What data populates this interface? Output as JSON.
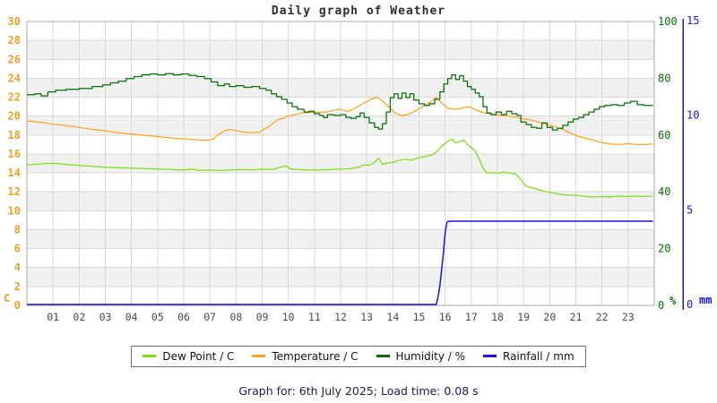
{
  "title": "Daily graph of Weather",
  "caption": "Graph for: 6th July 2025; Load time: 0.08 s",
  "legend": {
    "items": [
      {
        "label": "Dew Point / C",
        "color": "#7de013"
      },
      {
        "label": "Temperature / C",
        "color": "#ffa41e"
      },
      {
        "label": "Humidity / %",
        "color": "#056e05"
      },
      {
        "label": "Rainfall / mm",
        "color": "#1414e8"
      }
    ]
  },
  "colors": {
    "band_gray": "#f0f0f0",
    "band_white": "#ffffff",
    "grid": "#d9d9d9",
    "border": "#a8a8a8",
    "x_label": "#4a4a4a",
    "title": "#2e2e2e",
    "caption": "#1b1b4f"
  },
  "chart_data": {
    "type": "line",
    "title": "Daily graph of Weather",
    "x_axis": {
      "range": [
        0,
        24
      ],
      "tick_labels": [
        "01",
        "02",
        "03",
        "04",
        "05",
        "06",
        "07",
        "08",
        "09",
        "10",
        "11",
        "12",
        "13",
        "14",
        "15",
        "16",
        "17",
        "18",
        "19",
        "20",
        "21",
        "22",
        "23"
      ]
    },
    "y_axes": {
      "temperature": {
        "side": "left",
        "unit": "C",
        "range": [
          0,
          30
        ],
        "ticks": [
          0,
          2,
          4,
          6,
          8,
          10,
          12,
          14,
          16,
          18,
          20,
          22,
          24,
          26,
          28,
          30
        ],
        "color": "#f0a028"
      },
      "humidity": {
        "side": "right",
        "unit": "%",
        "range": [
          0,
          100
        ],
        "ticks": [
          0,
          20,
          40,
          60,
          80,
          100
        ],
        "color": "#056e05"
      },
      "rainfall": {
        "side": "right-outer",
        "unit": "mm",
        "range": [
          0,
          15
        ],
        "ticks": [
          0,
          5,
          10,
          15
        ],
        "color": "#1414e8"
      }
    },
    "grid": true,
    "legend_position": "bottom",
    "series": [
      {
        "name": "Dew Point / C",
        "axis": "temperature",
        "color": "#7de013",
        "interpolation": "linear",
        "points": [
          [
            0,
            14.85
          ],
          [
            0.3,
            14.9
          ],
          [
            0.7,
            15.0
          ],
          [
            1.1,
            15.0
          ],
          [
            1.5,
            14.9
          ],
          [
            2,
            14.8
          ],
          [
            2.5,
            14.7
          ],
          [
            3,
            14.6
          ],
          [
            3.5,
            14.55
          ],
          [
            4,
            14.5
          ],
          [
            4.5,
            14.45
          ],
          [
            5,
            14.4
          ],
          [
            5.5,
            14.35
          ],
          [
            6,
            14.3
          ],
          [
            6.3,
            14.4
          ],
          [
            6.6,
            14.25
          ],
          [
            7,
            14.3
          ],
          [
            7.4,
            14.25
          ],
          [
            7.8,
            14.3
          ],
          [
            8.2,
            14.35
          ],
          [
            8.6,
            14.3
          ],
          [
            9,
            14.4
          ],
          [
            9.4,
            14.35
          ],
          [
            9.9,
            14.75
          ],
          [
            10.1,
            14.4
          ],
          [
            10.4,
            14.35
          ],
          [
            10.8,
            14.3
          ],
          [
            11.2,
            14.3
          ],
          [
            11.6,
            14.35
          ],
          [
            12,
            14.4
          ],
          [
            12.4,
            14.45
          ],
          [
            12.7,
            14.6
          ],
          [
            12.9,
            14.85
          ],
          [
            13.1,
            14.8
          ],
          [
            13.3,
            15.1
          ],
          [
            13.45,
            15.55
          ],
          [
            13.6,
            14.9
          ],
          [
            13.8,
            15.05
          ],
          [
            14,
            15.1
          ],
          [
            14.2,
            15.3
          ],
          [
            14.45,
            15.45
          ],
          [
            14.7,
            15.35
          ],
          [
            15,
            15.6
          ],
          [
            15.25,
            15.75
          ],
          [
            15.5,
            15.9
          ],
          [
            15.7,
            16.3
          ],
          [
            15.9,
            16.9
          ],
          [
            16.1,
            17.35
          ],
          [
            16.25,
            17.6
          ],
          [
            16.4,
            17.15
          ],
          [
            16.55,
            17.3
          ],
          [
            16.7,
            17.45
          ],
          [
            16.85,
            17.0
          ],
          [
            17,
            16.7
          ],
          [
            17.15,
            16.3
          ],
          [
            17.3,
            15.5
          ],
          [
            17.45,
            14.5
          ],
          [
            17.6,
            14.0
          ],
          [
            17.8,
            14.05
          ],
          [
            18,
            13.95
          ],
          [
            18.2,
            14.1
          ],
          [
            18.45,
            14.0
          ],
          [
            18.7,
            13.9
          ],
          [
            18.9,
            13.3
          ],
          [
            19.1,
            12.6
          ],
          [
            19.3,
            12.45
          ],
          [
            19.6,
            12.2
          ],
          [
            19.9,
            12.0
          ],
          [
            20.2,
            11.85
          ],
          [
            20.5,
            11.7
          ],
          [
            20.8,
            11.65
          ],
          [
            21.1,
            11.6
          ],
          [
            21.4,
            11.5
          ],
          [
            21.7,
            11.45
          ],
          [
            22,
            11.5
          ],
          [
            22.3,
            11.45
          ],
          [
            22.6,
            11.55
          ],
          [
            22.9,
            11.5
          ],
          [
            23.2,
            11.55
          ],
          [
            23.5,
            11.5
          ],
          [
            23.95,
            11.55
          ]
        ]
      },
      {
        "name": "Temperature / C",
        "axis": "temperature",
        "color": "#ffa41e",
        "interpolation": "linear",
        "points": [
          [
            0,
            19.5
          ],
          [
            0.5,
            19.35
          ],
          [
            1,
            19.15
          ],
          [
            1.5,
            19.0
          ],
          [
            2,
            18.8
          ],
          [
            2.5,
            18.6
          ],
          [
            3,
            18.45
          ],
          [
            3.5,
            18.25
          ],
          [
            4,
            18.1
          ],
          [
            4.5,
            17.95
          ],
          [
            5,
            17.85
          ],
          [
            5.5,
            17.7
          ],
          [
            6,
            17.6
          ],
          [
            6.5,
            17.5
          ],
          [
            6.9,
            17.45
          ],
          [
            7.1,
            17.55
          ],
          [
            7.35,
            18.1
          ],
          [
            7.6,
            18.5
          ],
          [
            7.8,
            18.6
          ],
          [
            8.1,
            18.4
          ],
          [
            8.5,
            18.25
          ],
          [
            8.9,
            18.3
          ],
          [
            9.25,
            18.9
          ],
          [
            9.6,
            19.6
          ],
          [
            10,
            20.0
          ],
          [
            10.3,
            20.2
          ],
          [
            10.6,
            20.35
          ],
          [
            11,
            20.4
          ],
          [
            11.4,
            20.4
          ],
          [
            11.8,
            20.65
          ],
          [
            11.95,
            20.75
          ],
          [
            12.1,
            20.6
          ],
          [
            12.3,
            20.5
          ],
          [
            12.6,
            20.9
          ],
          [
            12.9,
            21.4
          ],
          [
            13.2,
            21.85
          ],
          [
            13.4,
            22.0
          ],
          [
            13.6,
            21.6
          ],
          [
            13.8,
            21.1
          ],
          [
            14.1,
            20.3
          ],
          [
            14.35,
            20.05
          ],
          [
            14.6,
            20.2
          ],
          [
            14.9,
            20.6
          ],
          [
            15.2,
            21.1
          ],
          [
            15.45,
            21.5
          ],
          [
            15.66,
            22.0
          ],
          [
            15.85,
            21.4
          ],
          [
            16.1,
            20.85
          ],
          [
            16.4,
            20.7
          ],
          [
            16.7,
            20.9
          ],
          [
            16.95,
            21.0
          ],
          [
            17.2,
            20.6
          ],
          [
            17.5,
            20.35
          ],
          [
            17.8,
            20.2
          ],
          [
            18.2,
            20.05
          ],
          [
            18.6,
            19.95
          ],
          [
            19,
            19.7
          ],
          [
            19.4,
            19.5
          ],
          [
            19.8,
            19.2
          ],
          [
            20.2,
            18.9
          ],
          [
            20.5,
            18.6
          ],
          [
            20.8,
            18.2
          ],
          [
            21.1,
            17.85
          ],
          [
            21.4,
            17.65
          ],
          [
            21.7,
            17.45
          ],
          [
            22,
            17.2
          ],
          [
            22.3,
            17.05
          ],
          [
            22.7,
            17.0
          ],
          [
            23,
            17.1
          ],
          [
            23.3,
            17.0
          ],
          [
            23.6,
            17.0
          ],
          [
            23.95,
            17.05
          ]
        ]
      },
      {
        "name": "Humidity / %",
        "axis": "humidity",
        "color": "#056e05",
        "interpolation": "step",
        "points": [
          [
            0,
            74.2
          ],
          [
            0.3,
            74.5
          ],
          [
            0.55,
            73.8
          ],
          [
            0.8,
            75.2
          ],
          [
            1.1,
            75.8
          ],
          [
            1.5,
            76.1
          ],
          [
            2,
            76.4
          ],
          [
            2.5,
            77.1
          ],
          [
            2.9,
            77.7
          ],
          [
            3.2,
            78.4
          ],
          [
            3.5,
            79.0
          ],
          [
            3.8,
            79.9
          ],
          [
            4.1,
            80.6
          ],
          [
            4.4,
            81.2
          ],
          [
            4.7,
            81.5
          ],
          [
            5,
            81.2
          ],
          [
            5.3,
            81.6
          ],
          [
            5.6,
            81.2
          ],
          [
            5.9,
            81.5
          ],
          [
            6.2,
            81.0
          ],
          [
            6.5,
            80.6
          ],
          [
            6.8,
            79.9
          ],
          [
            7.05,
            78.7
          ],
          [
            7.3,
            77.4
          ],
          [
            7.55,
            78.0
          ],
          [
            7.75,
            77.1
          ],
          [
            8,
            77.4
          ],
          [
            8.3,
            76.8
          ],
          [
            8.6,
            77.1
          ],
          [
            8.9,
            76.4
          ],
          [
            9.15,
            75.8
          ],
          [
            9.35,
            74.5
          ],
          [
            9.55,
            73.5
          ],
          [
            9.75,
            72.6
          ],
          [
            9.95,
            71.3
          ],
          [
            10.15,
            70.0
          ],
          [
            10.35,
            69.1
          ],
          [
            10.6,
            68.1
          ],
          [
            10.8,
            68.4
          ],
          [
            11,
            67.5
          ],
          [
            11.2,
            66.9
          ],
          [
            11.35,
            66.2
          ],
          [
            11.5,
            67.2
          ],
          [
            11.75,
            66.9
          ],
          [
            12,
            67.2
          ],
          [
            12.2,
            66.2
          ],
          [
            12.4,
            65.9
          ],
          [
            12.6,
            66.5
          ],
          [
            12.75,
            67.8
          ],
          [
            12.9,
            66.2
          ],
          [
            13.1,
            64.3
          ],
          [
            13.3,
            62.7
          ],
          [
            13.45,
            62.1
          ],
          [
            13.6,
            64.0
          ],
          [
            13.75,
            68.1
          ],
          [
            13.9,
            73.2
          ],
          [
            14.05,
            74.5
          ],
          [
            14.2,
            72.9
          ],
          [
            14.35,
            74.8
          ],
          [
            14.5,
            73.2
          ],
          [
            14.65,
            74.5
          ],
          [
            14.8,
            72.3
          ],
          [
            15,
            71.0
          ],
          [
            15.2,
            70.4
          ],
          [
            15.4,
            71.0
          ],
          [
            15.6,
            72.6
          ],
          [
            15.8,
            75.2
          ],
          [
            15.95,
            78.0
          ],
          [
            16.1,
            79.9
          ],
          [
            16.25,
            81.2
          ],
          [
            16.4,
            79.6
          ],
          [
            16.55,
            80.9
          ],
          [
            16.7,
            79.0
          ],
          [
            16.85,
            77.1
          ],
          [
            17,
            76.1
          ],
          [
            17.15,
            74.8
          ],
          [
            17.3,
            73.5
          ],
          [
            17.45,
            70.0
          ],
          [
            17.6,
            67.8
          ],
          [
            17.75,
            67.2
          ],
          [
            17.95,
            68.1
          ],
          [
            18.15,
            67.2
          ],
          [
            18.35,
            68.4
          ],
          [
            18.55,
            67.5
          ],
          [
            18.75,
            66.9
          ],
          [
            18.9,
            64.6
          ],
          [
            19.1,
            63.7
          ],
          [
            19.3,
            62.7
          ],
          [
            19.5,
            62.4
          ],
          [
            19.7,
            64.3
          ],
          [
            19.9,
            62.7
          ],
          [
            20.1,
            61.8
          ],
          [
            20.3,
            62.4
          ],
          [
            20.5,
            63.4
          ],
          [
            20.7,
            64.6
          ],
          [
            20.9,
            65.6
          ],
          [
            21.1,
            66.2
          ],
          [
            21.3,
            67.2
          ],
          [
            21.5,
            68.1
          ],
          [
            21.7,
            69.1
          ],
          [
            21.9,
            70.0
          ],
          [
            22.1,
            70.4
          ],
          [
            22.35,
            70.7
          ],
          [
            22.6,
            70.4
          ],
          [
            22.85,
            71.3
          ],
          [
            23.1,
            71.9
          ],
          [
            23.35,
            70.7
          ],
          [
            23.6,
            70.4
          ],
          [
            23.95,
            70.4
          ]
        ]
      },
      {
        "name": "Rainfall / mm",
        "axis": "rainfall",
        "color": "#1414e8",
        "interpolation": "linear",
        "points": [
          [
            0,
            0
          ],
          [
            15.66,
            0
          ],
          [
            15.73,
            0.4
          ],
          [
            15.8,
            1.0
          ],
          [
            15.87,
            1.9
          ],
          [
            15.94,
            2.8
          ],
          [
            16.0,
            3.8
          ],
          [
            16.07,
            4.35
          ],
          [
            16.15,
            4.4
          ],
          [
            23.95,
            4.4
          ]
        ]
      }
    ]
  }
}
